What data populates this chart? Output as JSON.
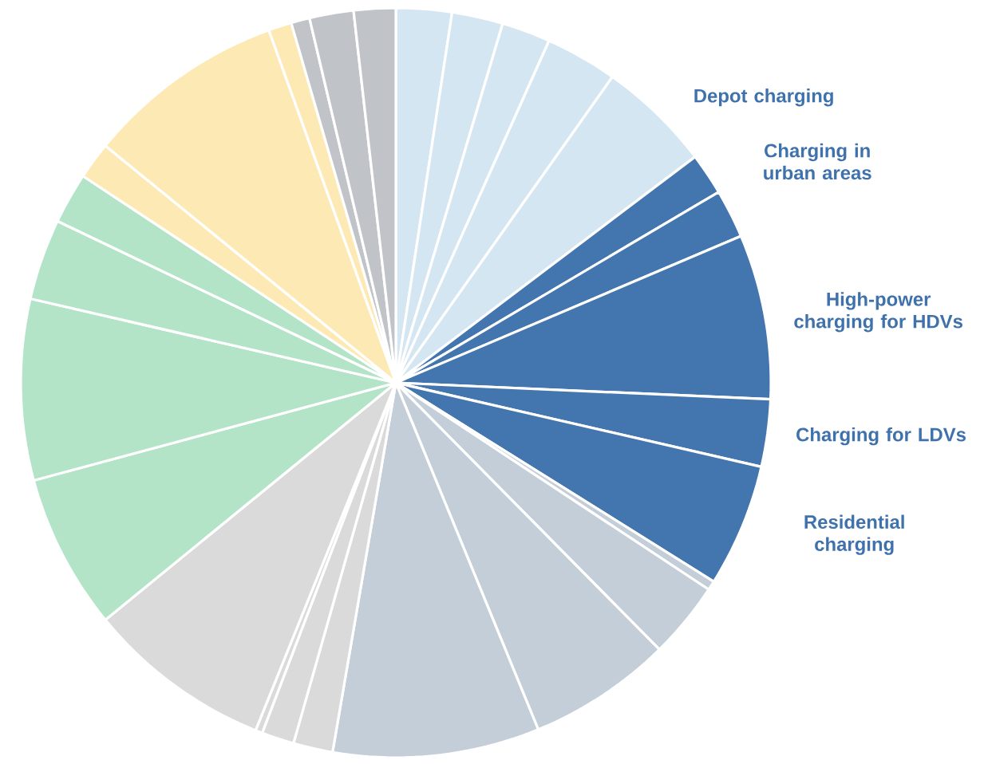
{
  "chart_data": {
    "type": "pie",
    "categories": [
      null,
      null,
      null,
      null,
      "Depot charging",
      "Charging in urban areas",
      null,
      "High-power charging for HDVs",
      "Charging for LDVs",
      "Residential charging",
      null,
      null,
      null,
      null,
      null,
      null,
      null,
      null,
      null,
      null,
      null,
      null,
      null,
      null,
      null,
      null,
      null,
      null
    ],
    "values": [
      2.4,
      2.2,
      2.1,
      3.1,
      4.9,
      1.8,
      2.1,
      7.1,
      2.9,
      5.3,
      0.4,
      3.3,
      6.2,
      8.9,
      1.7,
      1.4,
      0.3,
      8.0,
      6.7,
      7.8,
      3.5,
      2.2,
      1.6,
      8.6,
      1.0,
      0.8,
      1.9,
      1.8
    ],
    "colors": [
      "#d5e6f3",
      "#d5e6f3",
      "#d5e6f3",
      "#d5e6f3",
      "#d5e6f3",
      "#4375ae",
      "#4375ae",
      "#4375ae",
      "#4375ae",
      "#4375ae",
      "#c3ced9",
      "#c3ced9",
      "#c3ced9",
      "#c3ced9",
      "#dadada",
      "#dadada",
      "#dadada",
      "#dadada",
      "#b3e4c8",
      "#b3e4c8",
      "#b3e4c8",
      "#b3e4c8",
      "#fde9b3",
      "#fde9b3",
      "#fde9b3",
      "#c0c4c8",
      "#c0c4c8",
      "#c0c4c8"
    ]
  }
}
